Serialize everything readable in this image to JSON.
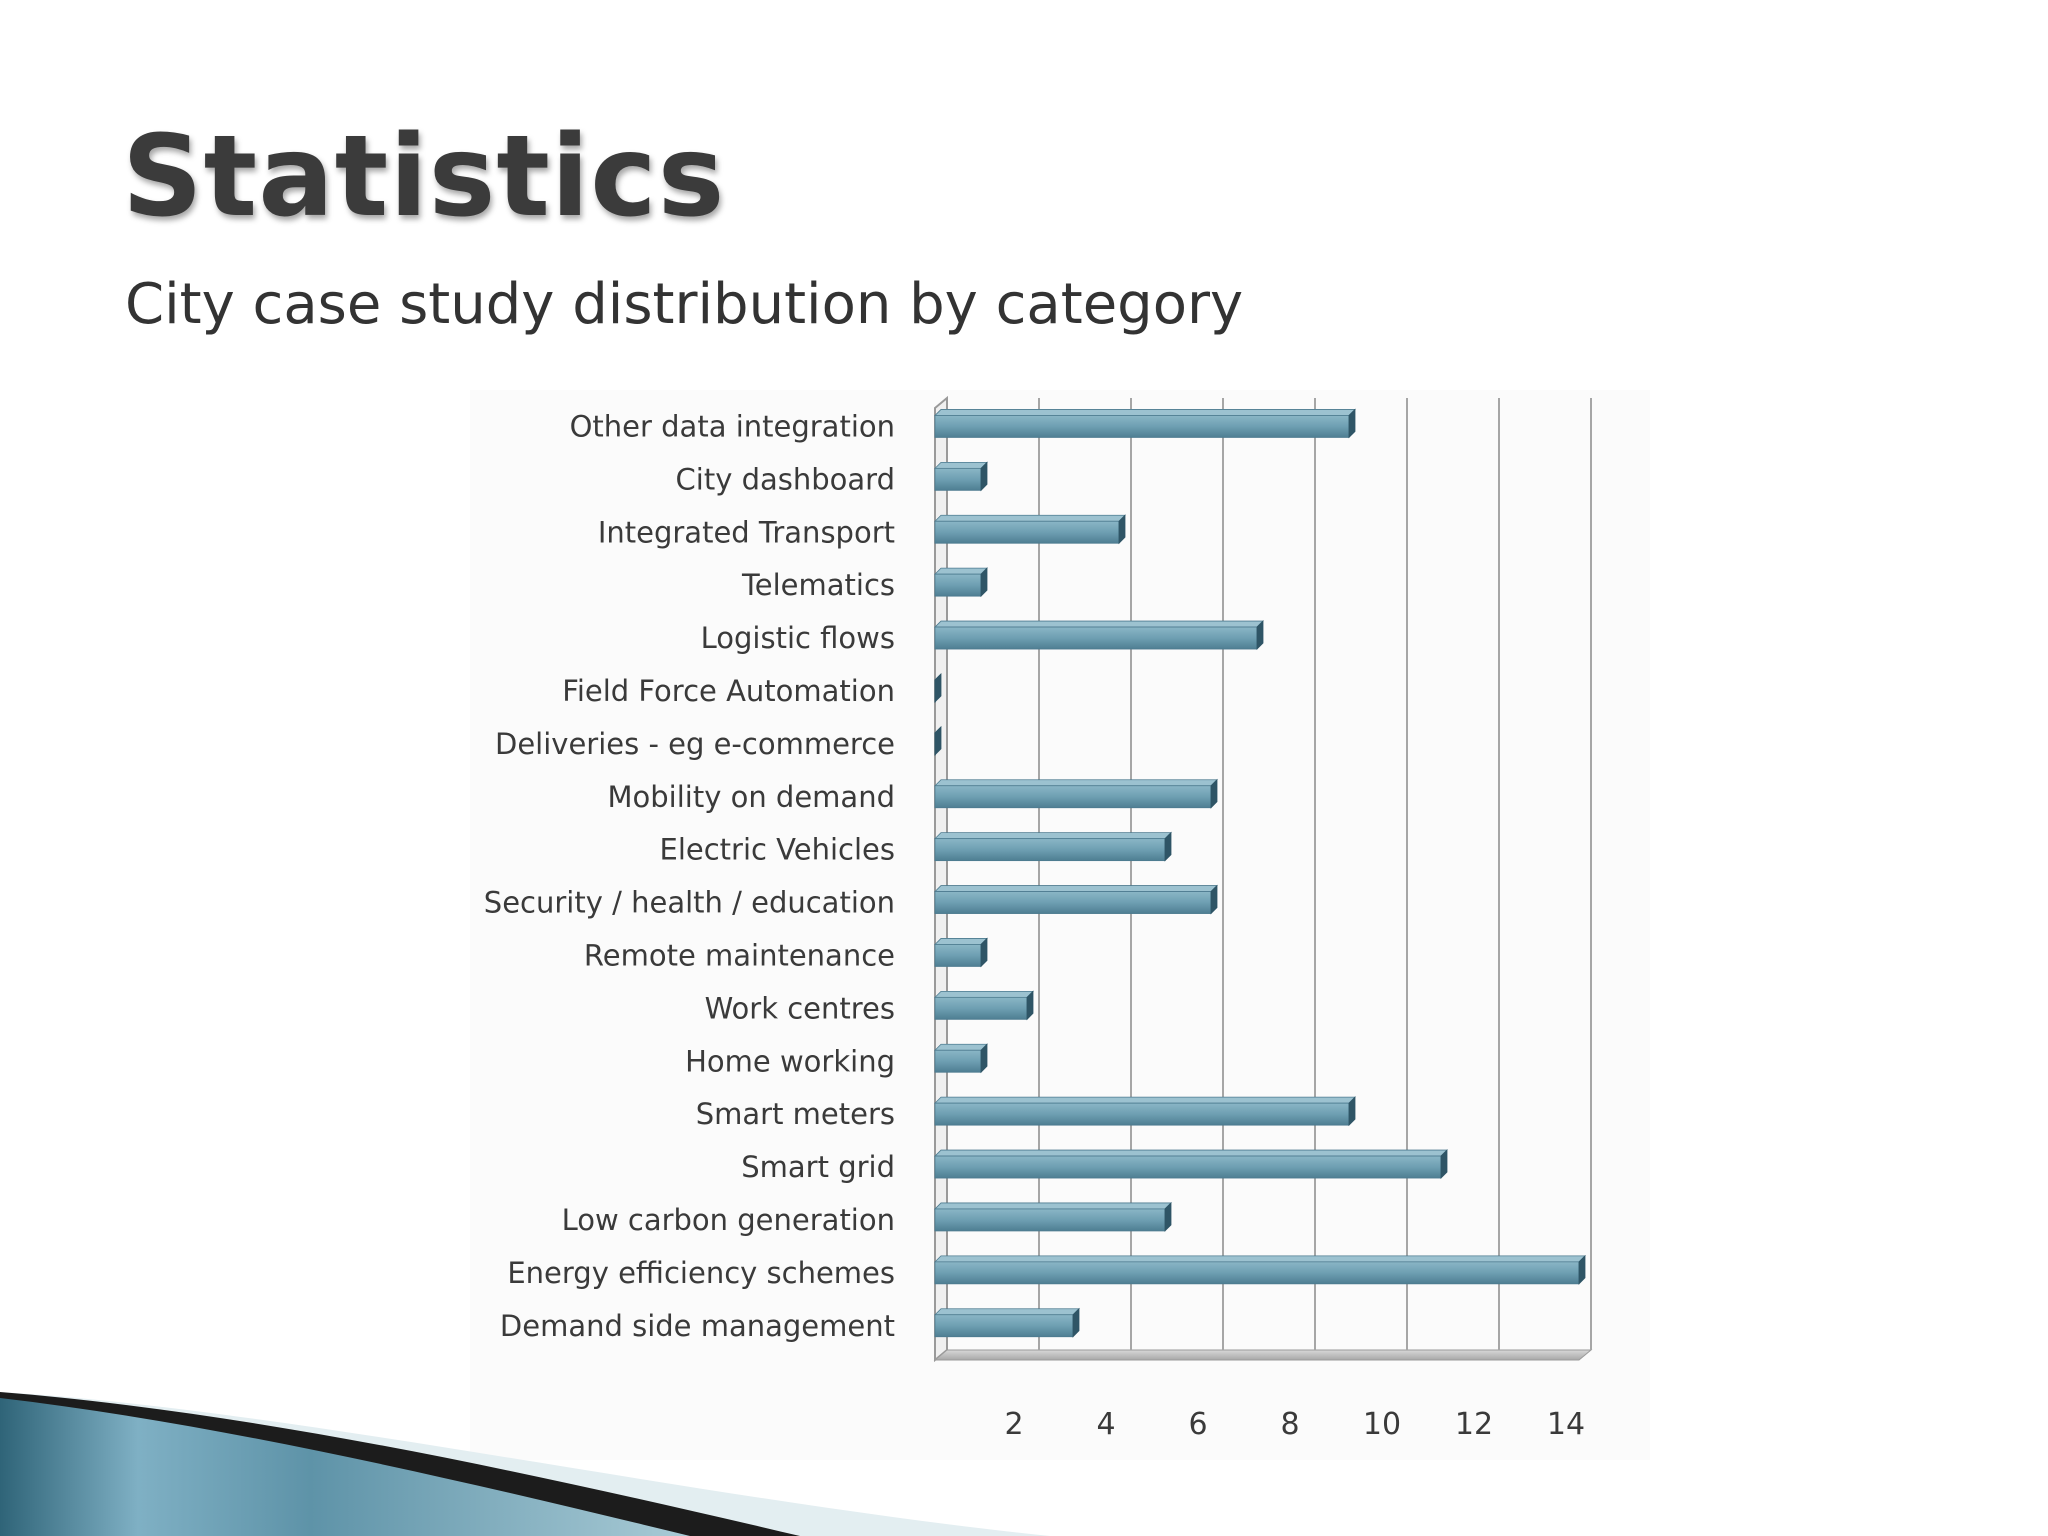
{
  "slide": {
    "title": "Statistics",
    "subtitle": "City case study distribution by category"
  },
  "chart_data": {
    "type": "bar",
    "orientation": "horizontal",
    "style": "3d",
    "categories": [
      "Other data integration",
      "City dashboard",
      "Integrated Transport",
      "Telematics",
      "Logistic flows",
      "Field Force Automation",
      "Deliveries - eg e-commerce",
      "Mobility on demand",
      "Electric Vehicles",
      "Security / health / education",
      "Remote maintenance",
      "Work centres",
      "Home working",
      "Smart meters",
      "Smart grid",
      "Low carbon generation",
      "Energy efficiency schemes",
      "Demand side management"
    ],
    "values": [
      9,
      1,
      4,
      1,
      7,
      0,
      0,
      6,
      5,
      6,
      1,
      2,
      1,
      9,
      11,
      5,
      14,
      3
    ],
    "x_ticks": [
      "2",
      "4",
      "6",
      "8",
      "10",
      "12",
      "14"
    ],
    "xlim": [
      0,
      14
    ],
    "grid": "vertical",
    "legend": "none",
    "bar_color": "#6e9fb2"
  }
}
